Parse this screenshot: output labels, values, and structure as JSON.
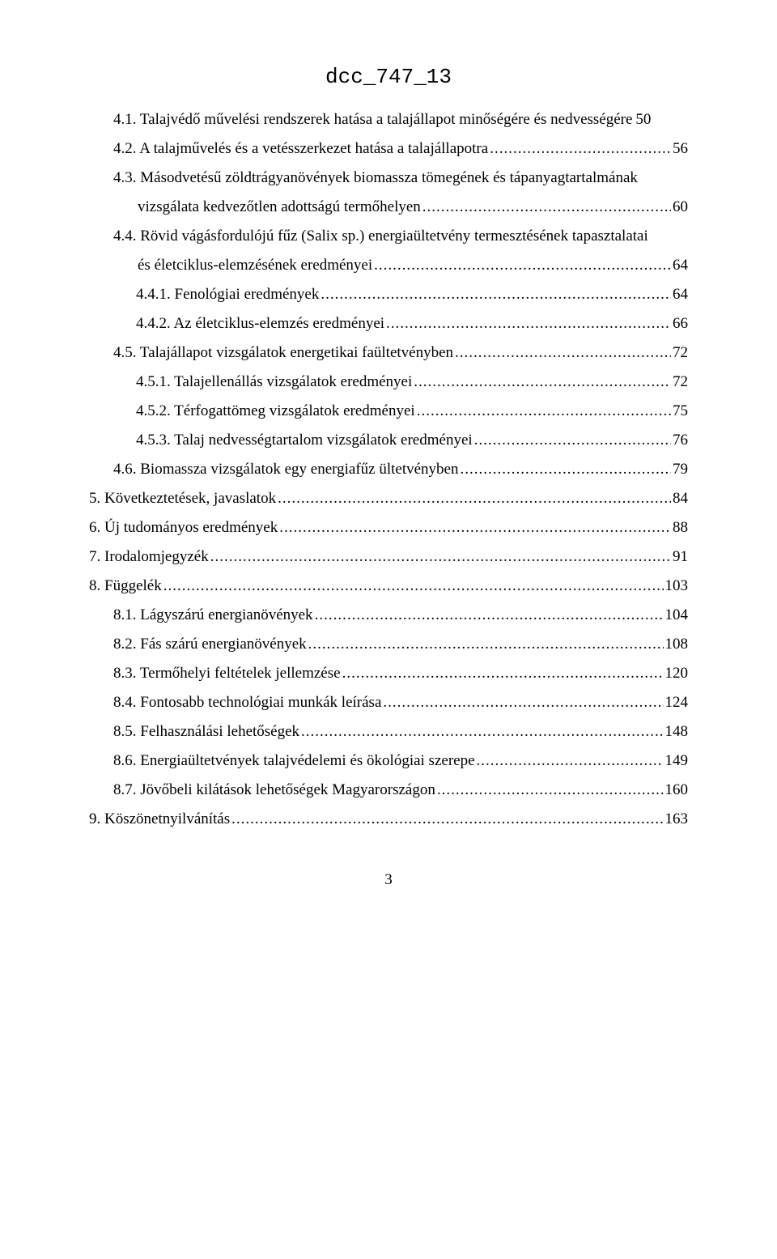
{
  "header_code": "dcc_747_13",
  "toc_entries": [
    {
      "level": 2,
      "wrap": false,
      "nodots": true,
      "text": "4.1. Talajvédő művelési rendszerek hatása a talajállapot minőségére és nedvességére",
      "page": "50"
    },
    {
      "level": 2,
      "wrap": false,
      "text": "4.2. A talajművelés és a vetésszerkezet hatása a talajállapotra",
      "page": "56"
    },
    {
      "level": 2,
      "wrap": true,
      "line1": "4.3. Másodvetésű zöldtrágyanövények biomassza tömegének és tápanyagtartalmának",
      "line2": "vizsgálata kedvezőtlen adottságú termőhelyen",
      "page": "60"
    },
    {
      "level": 2,
      "wrap": true,
      "line1": "4.4. Rövid vágásfordulójú fűz (Salix sp.) energiaültetvény termesztésének tapasztalatai",
      "line2": "és életciklus-elemzésének eredményei",
      "page": "64"
    },
    {
      "level": 3,
      "wrap": false,
      "text": "4.4.1. Fenológiai eredmények",
      "page": "64"
    },
    {
      "level": 3,
      "wrap": false,
      "text": "4.4.2. Az életciklus-elemzés eredményei",
      "page": "66"
    },
    {
      "level": 2,
      "wrap": false,
      "text": "4.5. Talajállapot vizsgálatok energetikai faültetvényben",
      "page": "72"
    },
    {
      "level": 3,
      "wrap": false,
      "text": "4.5.1. Talajellenállás vizsgálatok eredményei",
      "page": "72"
    },
    {
      "level": 3,
      "wrap": false,
      "text": "4.5.2. Térfogattömeg vizsgálatok eredményei",
      "page": "75"
    },
    {
      "level": 3,
      "wrap": false,
      "text": "4.5.3. Talaj nedvességtartalom vizsgálatok eredményei",
      "page": "76"
    },
    {
      "level": 2,
      "wrap": false,
      "text": "4.6. Biomassza vizsgálatok egy energiafűz ültetvényben",
      "page": "79"
    },
    {
      "level": 1,
      "wrap": false,
      "text": "5. Következtetések, javaslatok",
      "page": "84"
    },
    {
      "level": 1,
      "wrap": false,
      "text": "6. Új tudományos eredmények",
      "page": "88"
    },
    {
      "level": 1,
      "wrap": false,
      "text": "7. Irodalomjegyzék",
      "page": "91"
    },
    {
      "level": 1,
      "wrap": false,
      "text": "8. Függelék",
      "page": "103"
    },
    {
      "level": 2,
      "wrap": false,
      "text": "8.1. Lágyszárú energianövények",
      "page": "104"
    },
    {
      "level": 2,
      "wrap": false,
      "text": "8.2. Fás szárú energianövények",
      "page": "108"
    },
    {
      "level": 2,
      "wrap": false,
      "text": "8.3. Termőhelyi feltételek jellemzése",
      "page": "120"
    },
    {
      "level": 2,
      "wrap": false,
      "text": "8.4. Fontosabb technológiai munkák leírása",
      "page": "124"
    },
    {
      "level": 2,
      "wrap": false,
      "text": "8.5. Felhasználási lehetőségek",
      "page": "148"
    },
    {
      "level": 2,
      "wrap": false,
      "text": "8.6. Energiaültetvények talajvédelemi és ökológiai szerepe",
      "page": "149"
    },
    {
      "level": 2,
      "wrap": false,
      "text": "8.7. Jövőbeli kilátások lehetőségek Magyarországon",
      "page": "160"
    },
    {
      "level": 1,
      "wrap": false,
      "text": "9. Köszönetnyilvánítás",
      "page": "163"
    }
  ],
  "page_number": "3",
  "colors": {
    "background": "#ffffff",
    "text": "#000000"
  },
  "typography": {
    "body_font": "Times New Roman",
    "header_font": "Courier New",
    "body_size_pt": 14,
    "header_size_pt": 18
  }
}
